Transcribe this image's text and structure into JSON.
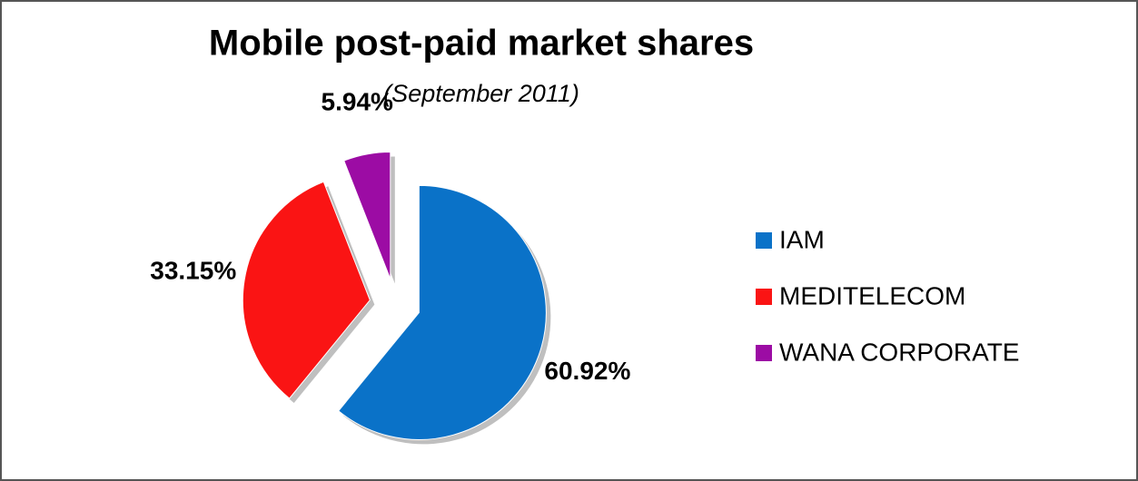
{
  "chart_data": {
    "type": "pie",
    "title": "Mobile post-paid market shares",
    "subtitle": "(September 2011)",
    "categories": [
      "IAM",
      "MEDITELECOM",
      "WANA CORPORATE"
    ],
    "values": [
      60.92,
      33.15,
      5.94
    ],
    "value_labels": [
      "60.92%",
      "33.15%",
      "5.94%"
    ],
    "colors": [
      "#0a72c8",
      "#fa1414",
      "#9c0ca4"
    ],
    "legend": "right"
  }
}
